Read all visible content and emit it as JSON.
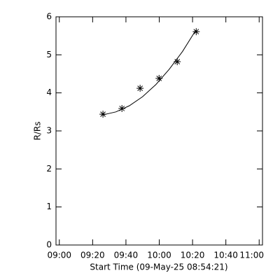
{
  "chart_data": {
    "type": "scatter",
    "xlabel": "Start Time (09-May-25 08:54:21)",
    "ylabel": "R/Rs",
    "xlim": [
      538,
      662
    ],
    "xticks": [
      {
        "value": 540,
        "label": "09:00"
      },
      {
        "value": 560,
        "label": "09:20"
      },
      {
        "value": 580,
        "label": "09:40"
      },
      {
        "value": 600,
        "label": "10:00"
      },
      {
        "value": 620,
        "label": "10:20"
      },
      {
        "value": 640,
        "label": "10:40"
      },
      {
        "value": 660,
        "label": "11:00"
      }
    ],
    "ylim": [
      0,
      6
    ],
    "yticks": [
      0,
      1,
      2,
      3,
      4,
      5,
      6
    ],
    "color": "#000000",
    "points": {
      "x": [
        566.2,
        577.6,
        588.5,
        599.9,
        610.8,
        622.2
      ],
      "values": [
        3.44,
        3.59,
        4.12,
        4.38,
        4.82,
        5.61
      ]
    },
    "fit": {
      "x": [
        566,
        574,
        582,
        590,
        598,
        606,
        614,
        622
      ],
      "values": [
        3.42,
        3.5,
        3.66,
        3.9,
        4.22,
        4.62,
        5.09,
        5.65
      ]
    }
  }
}
